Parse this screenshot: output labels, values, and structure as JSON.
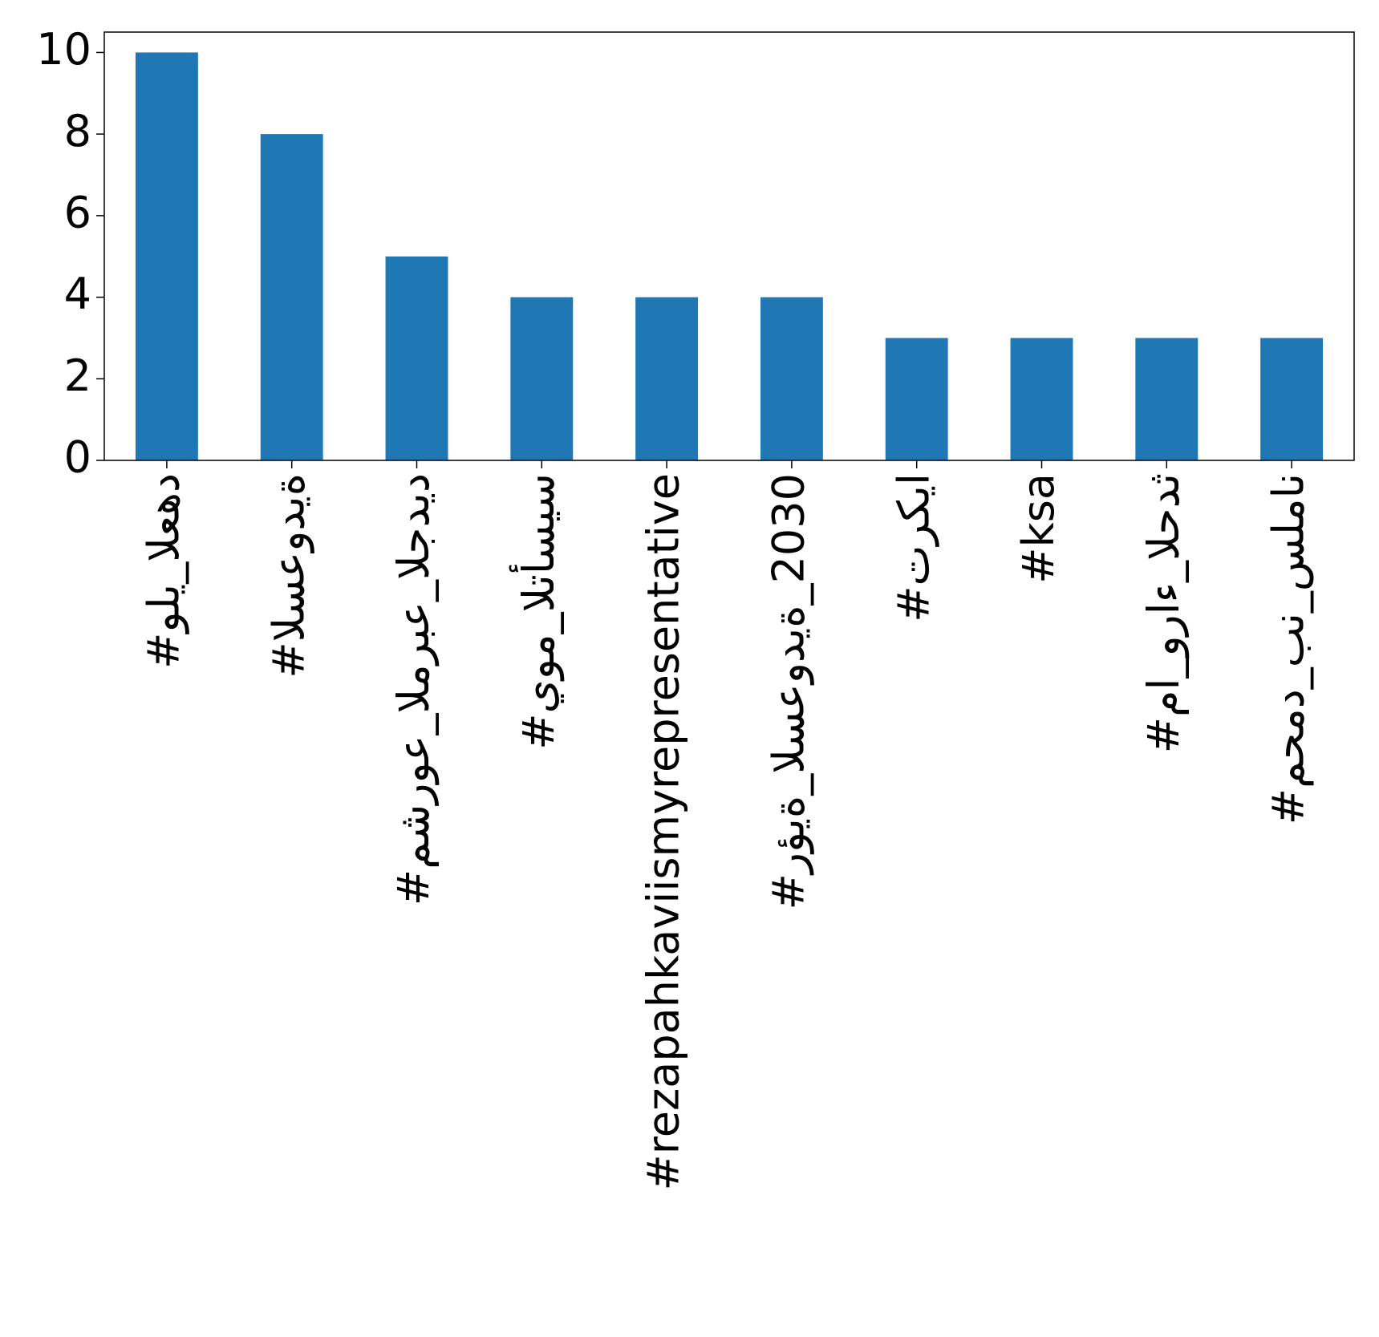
{
  "chart_data": {
    "type": "bar",
    "categories": [
      "#ولي_العهد",
      "#السعودية",
      "#مشروع_المربع_الجديد",
      "#يوم_التأسيس",
      "#rezapahkaviismyrepresentative",
      "#رؤية_السعودية_2030",
      "#تركيا",
      "#ksa",
      "#ما_وراء_الحدث",
      "#محمد_بن_سلمان"
    ],
    "values": [
      10,
      8,
      5,
      4,
      4,
      4,
      3,
      3,
      3,
      3
    ],
    "color": "#1f77b4",
    "ylim": [
      0,
      10.5
    ],
    "yticks": [
      0,
      2,
      4,
      6,
      8,
      10
    ],
    "grid": false
  }
}
